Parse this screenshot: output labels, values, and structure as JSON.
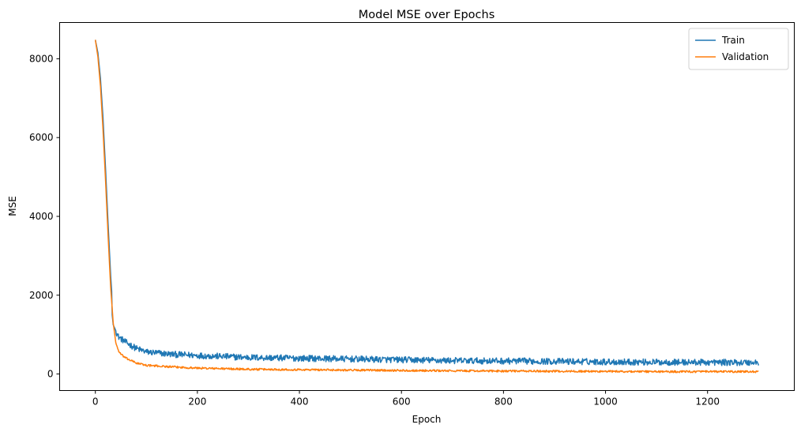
{
  "chart_data": {
    "type": "line",
    "title": "Model MSE over Epochs",
    "xlabel": "Epoch",
    "ylabel": "MSE",
    "xlim": [
      -70,
      1370
    ],
    "ylim": [
      -420,
      8920
    ],
    "xticks": [
      0,
      200,
      400,
      600,
      800,
      1000,
      1200
    ],
    "yticks": [
      0,
      2000,
      4000,
      6000,
      8000
    ],
    "grid": false,
    "legend_position": "top-right",
    "epochs": [
      0,
      1300
    ],
    "series": [
      {
        "name": "Train",
        "color": "#1f77b4",
        "keypoints": [
          [
            0,
            8480
          ],
          [
            5,
            8150
          ],
          [
            10,
            7500
          ],
          [
            15,
            6500
          ],
          [
            20,
            5200
          ],
          [
            25,
            3800
          ],
          [
            30,
            2500
          ],
          [
            32,
            2100
          ],
          [
            33,
            1500
          ],
          [
            35,
            1250
          ],
          [
            40,
            1100
          ],
          [
            45,
            950
          ],
          [
            50,
            900
          ],
          [
            60,
            800
          ],
          [
            80,
            650
          ],
          [
            100,
            560
          ],
          [
            150,
            500
          ],
          [
            200,
            470
          ],
          [
            300,
            420
          ],
          [
            400,
            400
          ],
          [
            500,
            380
          ],
          [
            600,
            360
          ],
          [
            700,
            340
          ],
          [
            800,
            330
          ],
          [
            900,
            320
          ],
          [
            1000,
            310
          ],
          [
            1100,
            300
          ],
          [
            1200,
            295
          ],
          [
            1300,
            290
          ]
        ],
        "noise_amplitude": 80
      },
      {
        "name": "Validation",
        "color": "#ff7f0e",
        "keypoints": [
          [
            0,
            8480
          ],
          [
            5,
            8050
          ],
          [
            10,
            7300
          ],
          [
            15,
            6200
          ],
          [
            20,
            4900
          ],
          [
            25,
            3500
          ],
          [
            30,
            2200
          ],
          [
            35,
            1300
          ],
          [
            40,
            800
          ],
          [
            45,
            600
          ],
          [
            50,
            500
          ],
          [
            60,
            400
          ],
          [
            80,
            280
          ],
          [
            100,
            220
          ],
          [
            150,
            180
          ],
          [
            200,
            150
          ],
          [
            300,
            120
          ],
          [
            400,
            110
          ],
          [
            500,
            100
          ],
          [
            600,
            90
          ],
          [
            700,
            80
          ],
          [
            800,
            75
          ],
          [
            900,
            70
          ],
          [
            1000,
            65
          ],
          [
            1100,
            60
          ],
          [
            1200,
            60
          ],
          [
            1300,
            60
          ]
        ],
        "noise_amplitude": 25
      }
    ]
  }
}
